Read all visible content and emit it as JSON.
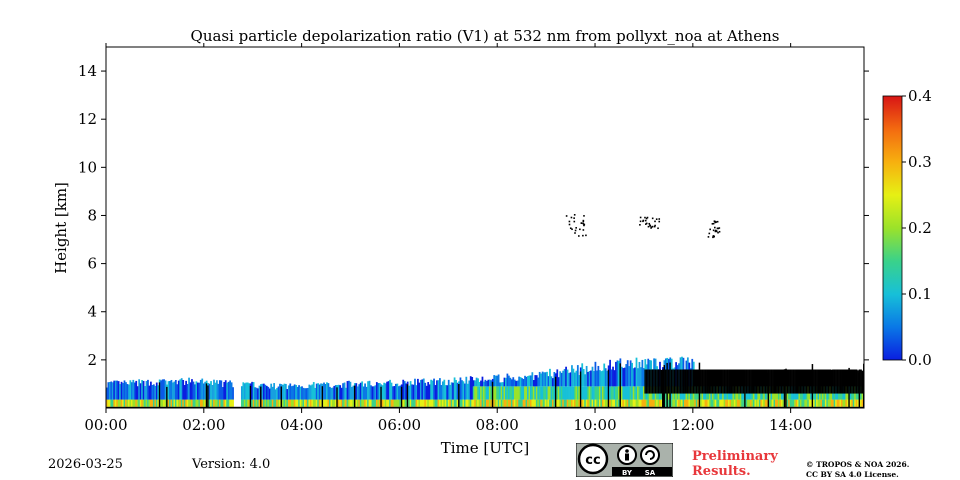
{
  "chart_data": {
    "type": "heatmap",
    "title": "Quasi particle depolarization ratio (V1) at 532 nm from pollyxt_noa at Athens",
    "xlabel": "Time [UTC]",
    "ylabel": "Height [km]",
    "xlim": [
      0,
      15.5
    ],
    "ylim": [
      0,
      15
    ],
    "x_ticks": [
      "00:00",
      "02:00",
      "04:00",
      "06:00",
      "08:00",
      "10:00",
      "12:00",
      "14:00"
    ],
    "x_tick_values": [
      0,
      2,
      4,
      6,
      8,
      10,
      12,
      14
    ],
    "y_ticks": [
      "2",
      "4",
      "6",
      "8",
      "10",
      "12",
      "14"
    ],
    "y_tick_values": [
      2,
      4,
      6,
      8,
      10,
      12,
      14
    ],
    "colorbar": {
      "range": [
        0.0,
        0.4
      ],
      "ticks": [
        "0.0",
        "0.1",
        "0.2",
        "0.3",
        "0.4"
      ],
      "tick_values": [
        0.0,
        0.1,
        0.2,
        0.3,
        0.4
      ],
      "colors": [
        "#0a1ee0",
        "#0a78e6",
        "#17c0d8",
        "#3ad28a",
        "#9be22a",
        "#e6f014",
        "#f7b00f",
        "#f36a10",
        "#d81515"
      ]
    },
    "data_gap_hours": [
      2.6,
      2.75
    ],
    "layers": [
      {
        "name": "boundary-layer",
        "t_start": 0.0,
        "t_end": 15.5,
        "top_km": [
          1.0,
          1.1,
          0.9,
          1.0,
          1.1,
          1.3,
          1.8,
          1.9,
          1.9,
          1.8
        ]
      },
      {
        "name": "cloud-1",
        "t_start": 9.4,
        "t_end": 9.8,
        "base_km": 7.1,
        "top_km": 8.1
      },
      {
        "name": "cloud-2",
        "t_start": 10.9,
        "t_end": 11.3,
        "base_km": 7.5,
        "top_km": 8.0
      },
      {
        "name": "cloud-3",
        "t_start": 12.3,
        "t_end": 12.6,
        "base_km": 7.1,
        "top_km": 7.8
      }
    ]
  },
  "footer": {
    "date": "2026-03-25",
    "version": "Version: 4.0",
    "preliminary_line1": "Preliminary",
    "preliminary_line2": "Results.",
    "copyright_line1": "© TROPOS & NOA 2026.",
    "copyright_line2": "CC BY SA 4.0 License.",
    "badge_by": "BY",
    "badge_sa": "SA",
    "badge_cc": "cc"
  }
}
